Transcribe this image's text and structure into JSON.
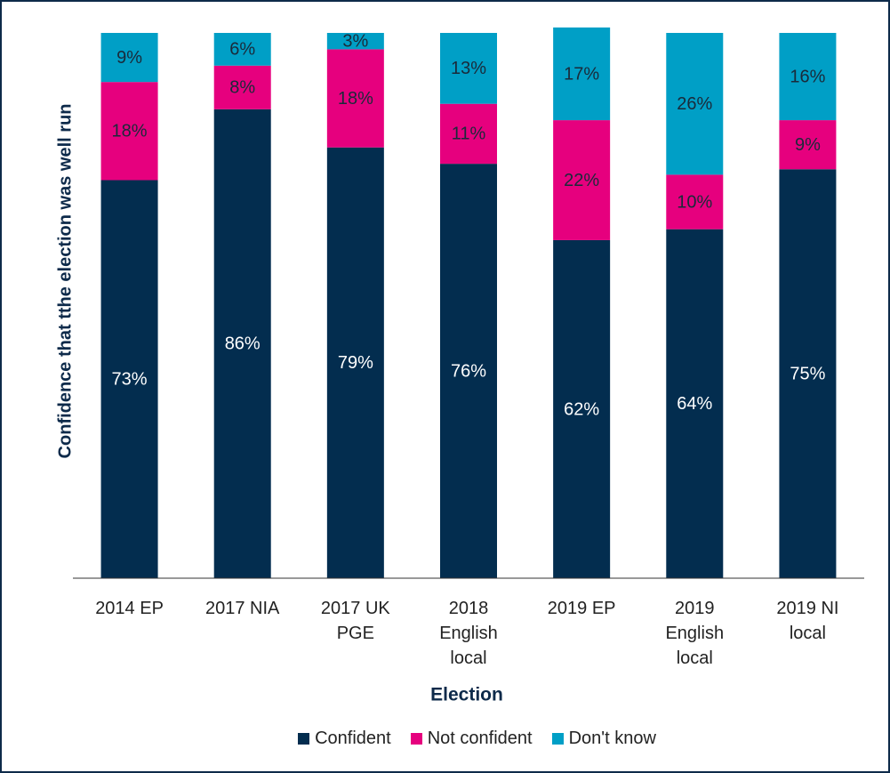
{
  "chart_data": {
    "type": "stacked-bar",
    "y_label": "Confidence that tthe election was well run",
    "x_label": "Election",
    "categories": [
      "2014 EP",
      "2017 NIA",
      "2017 UK PGE",
      "2018 English local",
      "2019 EP",
      "2019 English local",
      "2019 NI local"
    ],
    "series": [
      {
        "name": "Confident",
        "color": "#032d4f",
        "values": [
          73,
          86,
          79,
          76,
          62,
          64,
          75
        ],
        "value_labels": [
          "73%",
          "86%",
          "79%",
          "76%",
          "62%",
          "64%",
          "75%"
        ]
      },
      {
        "name": "Not confident",
        "color": "#e6007e",
        "values": [
          18,
          8,
          18,
          11,
          22,
          10,
          9
        ],
        "value_labels": [
          "18%",
          "8%",
          "18%",
          "11%",
          "22%",
          "10%",
          "9%"
        ]
      },
      {
        "name": "Don't know",
        "color": "#009fc6",
        "values": [
          9,
          6,
          3,
          13,
          17,
          26,
          16
        ],
        "value_labels": [
          "9%",
          "6%",
          "3%",
          "13%",
          "17%",
          "26%",
          "16%"
        ]
      }
    ],
    "ylim": [
      0,
      100
    ]
  }
}
